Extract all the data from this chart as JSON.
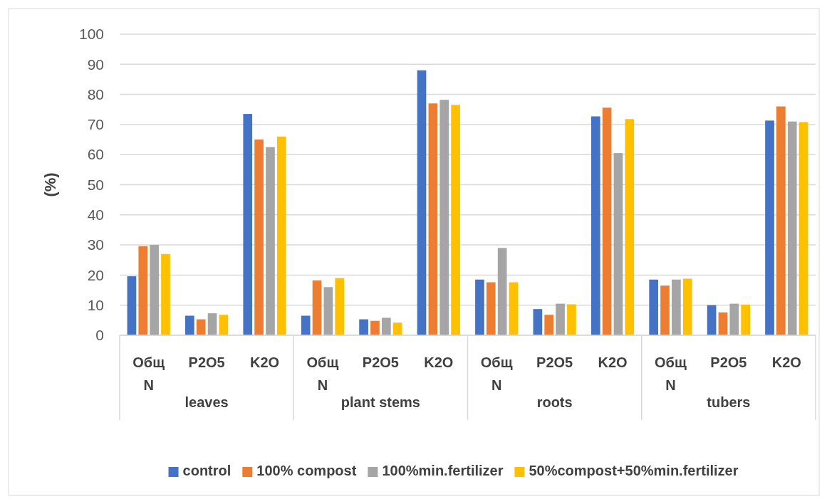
{
  "chart_data": {
    "type": "bar",
    "ylabel": "(%)",
    "categories": [
      "Общ N",
      "P2O5",
      "K2O",
      "Общ N",
      "P2O5",
      "K2O",
      "Общ N",
      "P2O5",
      "K2O",
      "Общ N",
      "P2O5",
      "K2O"
    ],
    "annotations": [
      "leaves",
      "plant stems",
      "roots",
      "tubers"
    ],
    "series": [
      {
        "name": "control",
        "color": "#4472c4",
        "values": [
          19.6,
          6.5,
          73.5,
          6.5,
          5.3,
          88,
          18.5,
          8.7,
          72.7,
          18.5,
          10,
          71.3
        ]
      },
      {
        "name": "100% compost",
        "color": "#ed7d31",
        "values": [
          29.6,
          5.3,
          65,
          18.2,
          4.8,
          77,
          17.6,
          6.8,
          75.6,
          16.5,
          7.6,
          76
        ]
      },
      {
        "name": "100%min.fertilizer",
        "color": "#a5a5a5",
        "values": [
          30,
          7.3,
          62.5,
          16,
          5.8,
          78.2,
          29,
          10.5,
          60.5,
          18.5,
          10.5,
          71
        ]
      },
      {
        "name": "50%compost+50%min.fertilizer",
        "color": "#ffc000",
        "values": [
          27,
          6.8,
          66,
          19,
          4.2,
          76.5,
          17.6,
          10.3,
          71.8,
          18.8,
          10.2,
          70.8
        ]
      }
    ],
    "ylim": [
      0,
      100
    ],
    "yticks": [
      0,
      10,
      20,
      30,
      40,
      50,
      60,
      70,
      80,
      90,
      100
    ],
    "grid": "y",
    "legend": "bottom"
  }
}
